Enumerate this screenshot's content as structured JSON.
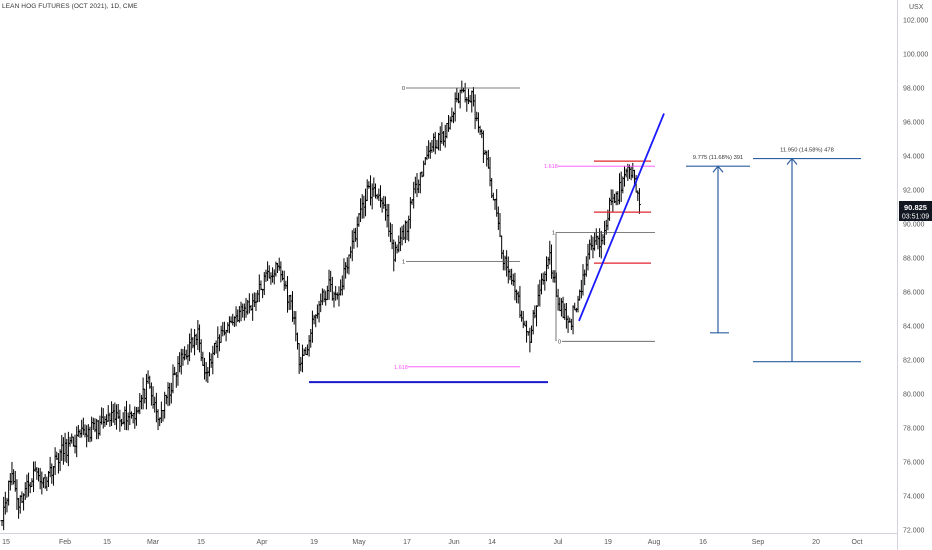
{
  "chart_title": "LEAN HOG FUTURES (OCT 2021), 1D, CME",
  "currency_label": "USX",
  "colors": {
    "bars": "#000000",
    "trendline": "#1a1aff",
    "support": "#1a1acc",
    "fib_magenta": "#ff4dff",
    "fib_red": "#e0232e",
    "measure": "#2d5fa0",
    "price_badge": "#131722"
  },
  "chart_data": {
    "type": "ohlc",
    "ylim": [
      72,
      104
    ],
    "y_ticks": [
      "102.000",
      "100.000",
      "98.000",
      "96.000",
      "94.000",
      "92.000",
      "90.000",
      "88.000",
      "86.000",
      "84.000",
      "82.000",
      "80.000",
      "78.000",
      "76.000",
      "74.000",
      "72.000"
    ],
    "x_ticks": [
      "15",
      "Feb",
      "15",
      "Mar",
      "15",
      "Apr",
      "19",
      "May",
      "17",
      "Jun",
      "14",
      "Jul",
      "19",
      "Aug",
      "16",
      "Sep",
      "20",
      "Oct"
    ],
    "last_price": "90.825",
    "countdown": "03:51:09",
    "waypoints": [
      [
        0,
        73.0
      ],
      [
        6,
        75.3
      ],
      [
        10,
        73.6
      ],
      [
        20,
        75.5
      ],
      [
        25,
        74.8
      ],
      [
        35,
        76.5
      ],
      [
        50,
        77.7
      ],
      [
        65,
        78.5
      ],
      [
        80,
        78.9
      ],
      [
        88,
        80.5
      ],
      [
        94,
        78.5
      ],
      [
        108,
        82.0
      ],
      [
        118,
        83.5
      ],
      [
        123,
        81.2
      ],
      [
        132,
        83.6
      ],
      [
        140,
        84.5
      ],
      [
        152,
        85.5
      ],
      [
        160,
        87.0
      ],
      [
        167,
        87.4
      ],
      [
        175,
        84.9
      ],
      [
        180,
        81.5
      ],
      [
        190,
        85.0
      ],
      [
        197,
        86.3
      ],
      [
        202,
        85.5
      ],
      [
        210,
        88.5
      ],
      [
        220,
        92.0
      ],
      [
        229,
        91.6
      ],
      [
        236,
        88.0
      ],
      [
        244,
        90.0
      ],
      [
        250,
        92.5
      ],
      [
        259,
        94.8
      ],
      [
        266,
        95.0
      ],
      [
        276,
        97.8
      ],
      [
        283,
        97.5
      ],
      [
        290,
        94.5
      ],
      [
        298,
        90.5
      ],
      [
        302,
        87.8
      ],
      [
        310,
        86.0
      ],
      [
        314,
        84.0
      ],
      [
        318,
        83.2
      ],
      [
        322,
        85.5
      ],
      [
        330,
        88.0
      ],
      [
        335,
        85.5
      ],
      [
        342,
        84.1
      ],
      [
        348,
        86.0
      ],
      [
        354,
        88.5
      ],
      [
        360,
        89.0
      ],
      [
        366,
        91.0
      ],
      [
        372,
        92.0
      ],
      [
        378,
        93.3
      ],
      [
        383,
        92.0
      ],
      [
        384,
        90.8
      ]
    ],
    "annotations": {
      "fib_levels_black": [
        {
          "label": "0",
          "price": 98.0
        },
        {
          "label": "1",
          "price": 87.8
        },
        {
          "label": "1",
          "price": 89.5
        },
        {
          "label": "0",
          "price": 83.1
        }
      ],
      "fib_levels_magenta": [
        {
          "label": "1.618",
          "price": 93.4
        },
        {
          "label": "1.618",
          "price": 81.6
        }
      ],
      "fib_levels_red_prices": [
        93.7,
        90.7,
        87.7
      ],
      "support_price": 80.7,
      "trendline_prices": [
        84.3,
        96.5
      ],
      "measurements": [
        {
          "label": "9.775 (11.68%) 391",
          "from": 83.6,
          "to": 93.4
        },
        {
          "label": "11.950 (14.58%) 478",
          "from": 81.9,
          "to": 93.85
        }
      ]
    }
  }
}
